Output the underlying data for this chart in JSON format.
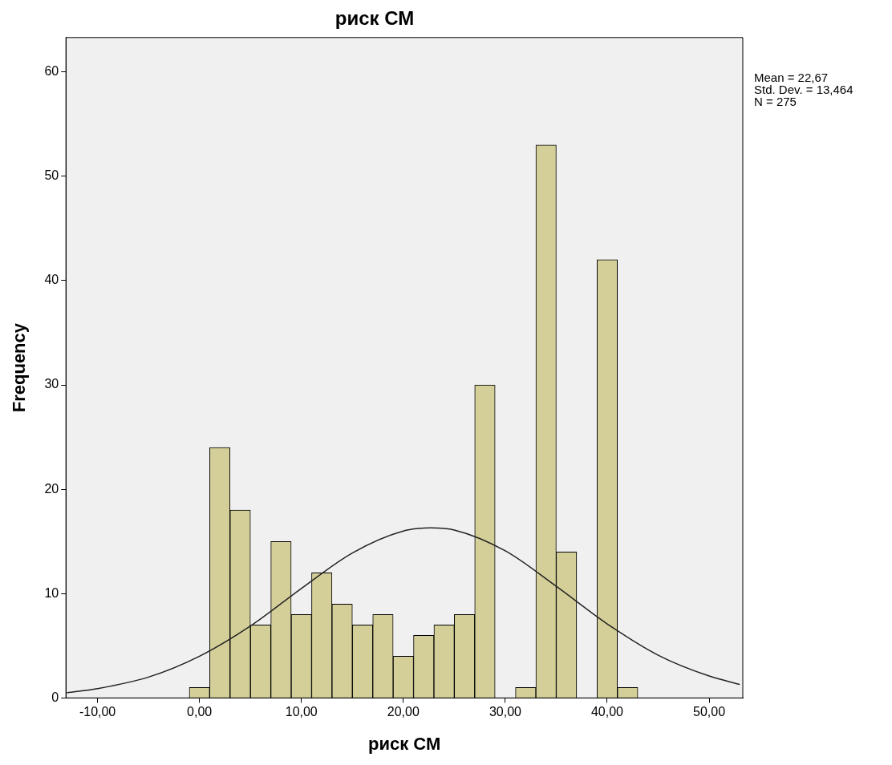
{
  "chart_data": {
    "type": "histogram",
    "title": "риск СМ",
    "xlabel": "риск СМ",
    "ylabel": "Frequency",
    "bins": [
      -1,
      1,
      3,
      5,
      7,
      9,
      11,
      13,
      15,
      17,
      19,
      21,
      23,
      25,
      27,
      29,
      31,
      33,
      35,
      37,
      39,
      41,
      43
    ],
    "values": [
      1,
      24,
      18,
      7,
      15,
      8,
      12,
      9,
      7,
      8,
      4,
      6,
      7,
      8,
      30,
      0,
      1,
      53,
      14,
      0,
      42,
      1
    ],
    "color": "#d4cf98",
    "series": [
      {
        "type": "line",
        "color": "#222222",
        "x": [
          -13,
          -10,
          -5,
          0,
          5,
          10,
          15,
          20,
          22.67,
          25,
          30,
          35,
          40,
          45,
          50,
          53
        ],
        "values": [
          0.5,
          0.9,
          2.0,
          4.0,
          6.9,
          10.5,
          13.9,
          16.0,
          16.3,
          16.1,
          14.1,
          10.7,
          7.1,
          4.1,
          2.1,
          1.3
        ]
      }
    ],
    "marker": "none",
    "xlim": [
      -13.1,
      53.3
    ],
    "xticks": [
      {
        "value": -10,
        "label": "-10,00"
      },
      {
        "value": 0,
        "label": "0,00"
      },
      {
        "value": 10,
        "label": "10,00"
      },
      {
        "value": 20,
        "label": "20,00"
      },
      {
        "value": 30,
        "label": "30,00"
      },
      {
        "value": 40,
        "label": "40,00"
      },
      {
        "value": 50,
        "label": "50,00"
      }
    ],
    "ylim": [
      0,
      63.3
    ],
    "yticks": [
      0,
      10,
      20,
      30,
      40,
      50,
      60
    ],
    "grid": false,
    "legend": false,
    "annotations": [
      "Mean = 22,67",
      "Std. Dev. = 13,464",
      "N = 275"
    ]
  }
}
